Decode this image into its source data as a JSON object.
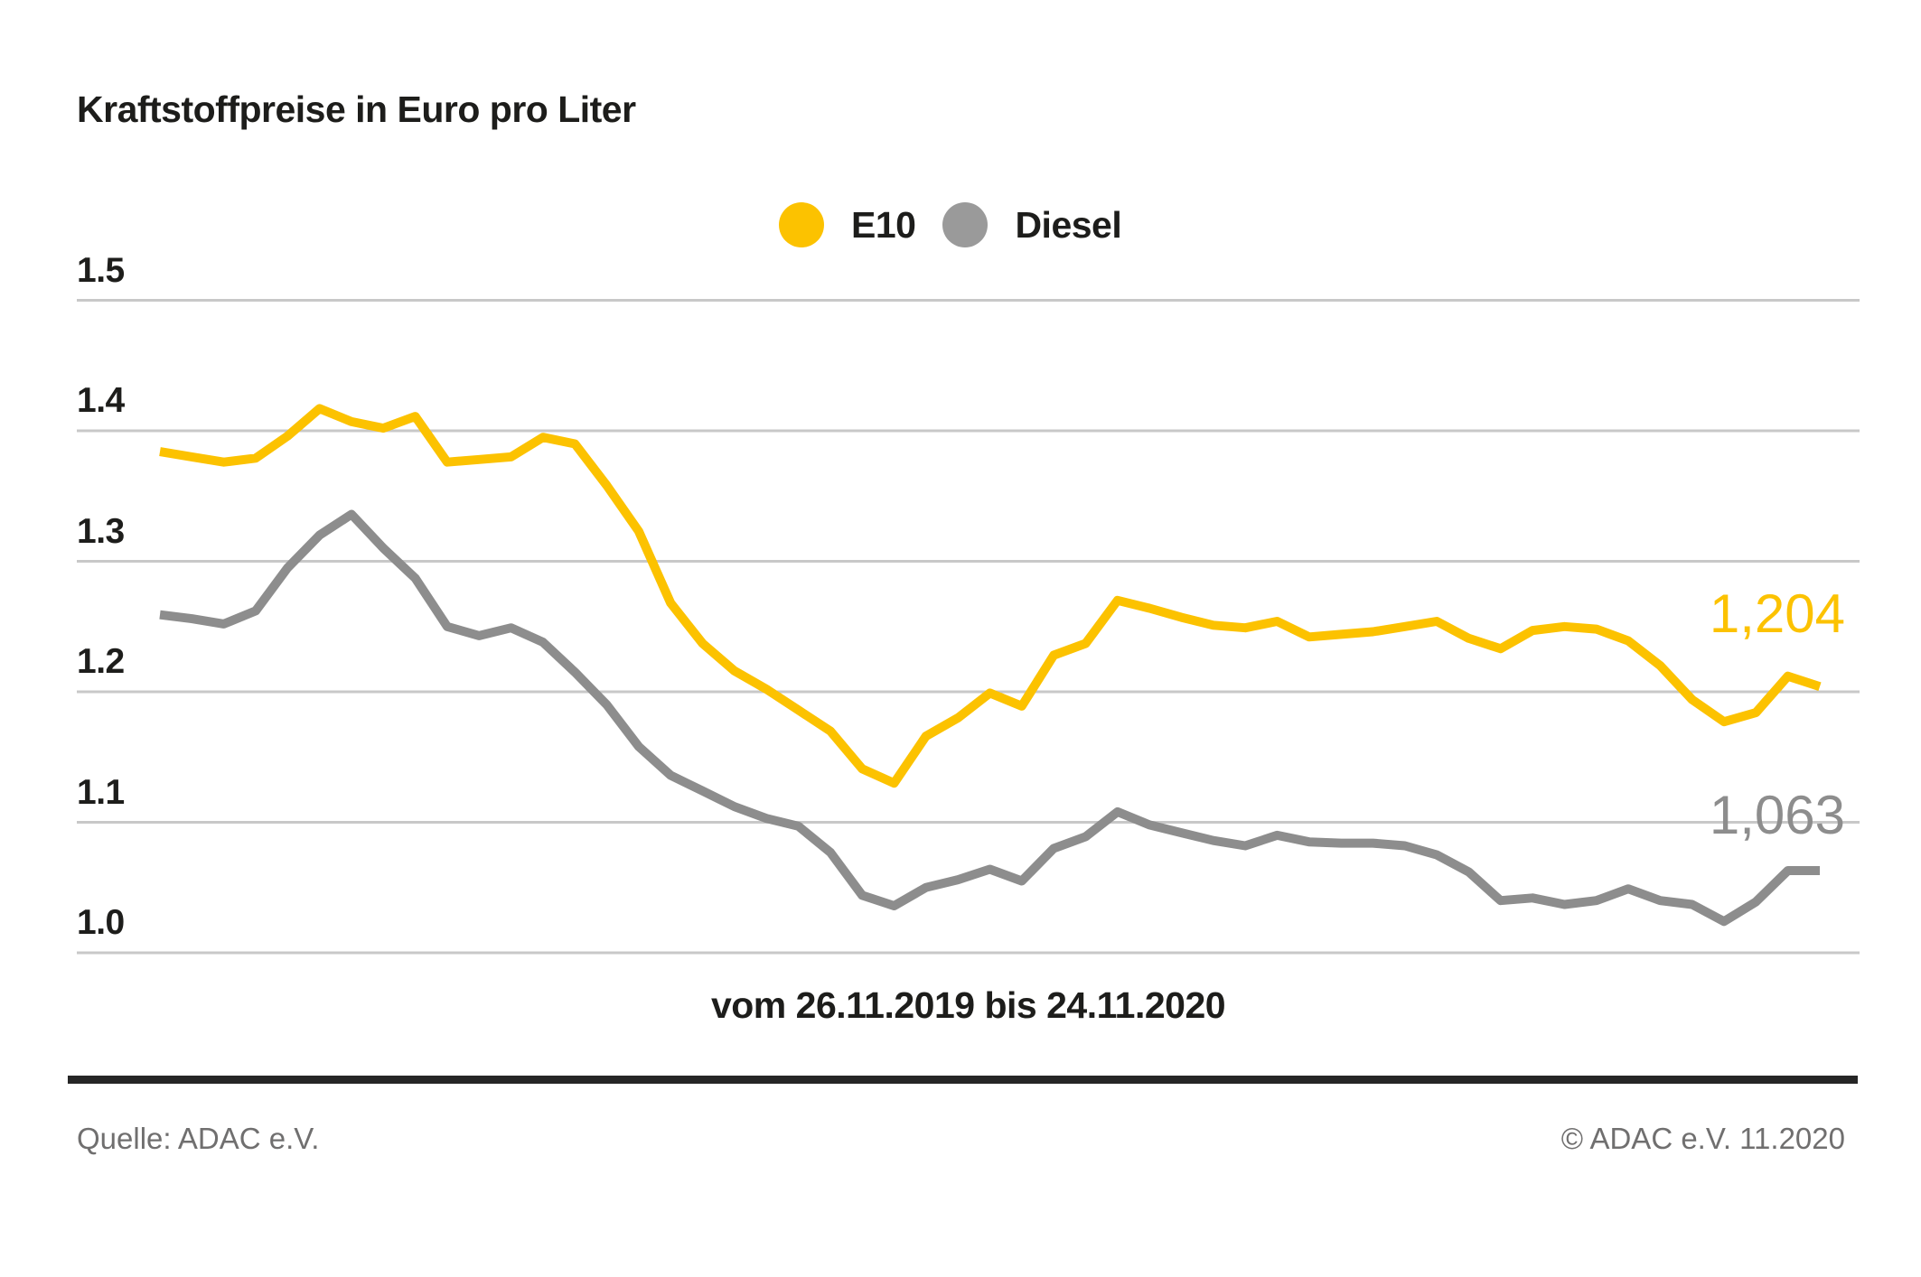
{
  "header": {
    "title": "Kraftstoffpreise in Euro pro Liter"
  },
  "y_axis": {
    "ticks": [
      "1.5",
      "1.4",
      "1.3",
      "1.2",
      "1.1",
      "1.0"
    ]
  },
  "footer": {
    "source": "Quelle: ADAC e.V.",
    "copyright": "© ADAC e.V. 11.2020"
  },
  "colors": {
    "e10_yellow": "#FCC200",
    "diesel_gray": "#8D8D8D",
    "legend_diesel_dot": "#9A9A9A",
    "gridline": "#C8C8C8",
    "text_dark": "#1D1D1B",
    "footer_gray": "#706F6F",
    "separator": "#262626"
  },
  "chart_data": {
    "type": "line",
    "title": "Kraftstoffpreise in Euro pro Liter",
    "x_caption": "vom 26.11.2019 bis 24.11.2020",
    "x_start": "26.11.2019",
    "x_end": "24.11.2020",
    "interval": "weekly",
    "ylim": [
      1.0,
      1.5
    ],
    "y_ticks": [
      1.5,
      1.4,
      1.3,
      1.2,
      1.1,
      1.0
    ],
    "grid": "horizontal",
    "legend_position": "top-center",
    "series": [
      {
        "name": "E10",
        "color": "#FCC200",
        "end_label": "1,204",
        "end_value": 1.204,
        "values": [
          1.384,
          1.38,
          1.376,
          1.379,
          1.396,
          1.417,
          1.407,
          1.402,
          1.411,
          1.376,
          1.378,
          1.38,
          1.395,
          1.39,
          1.358,
          1.323,
          1.268,
          1.237,
          1.216,
          1.202,
          1.186,
          1.17,
          1.141,
          1.13,
          1.166,
          1.18,
          1.199,
          1.189,
          1.228,
          1.237,
          1.27,
          1.264,
          1.257,
          1.251,
          1.249,
          1.254,
          1.242,
          1.244,
          1.246,
          1.25,
          1.254,
          1.241,
          1.233,
          1.247,
          1.25,
          1.248,
          1.239,
          1.22,
          1.194,
          1.177,
          1.184,
          1.212,
          1.204
        ]
      },
      {
        "name": "Diesel",
        "color": "#8D8D8D",
        "end_label": "1,063",
        "end_value": 1.063,
        "values": [
          1.259,
          1.256,
          1.252,
          1.262,
          1.295,
          1.32,
          1.336,
          1.31,
          1.287,
          1.25,
          1.243,
          1.249,
          1.238,
          1.215,
          1.19,
          1.158,
          1.136,
          1.124,
          1.112,
          1.103,
          1.097,
          1.077,
          1.044,
          1.036,
          1.05,
          1.056,
          1.064,
          1.055,
          1.08,
          1.089,
          1.108,
          1.098,
          1.092,
          1.086,
          1.082,
          1.09,
          1.085,
          1.084,
          1.084,
          1.082,
          1.075,
          1.062,
          1.04,
          1.042,
          1.037,
          1.04,
          1.049,
          1.04,
          1.037,
          1.024,
          1.039,
          1.063,
          1.063
        ]
      }
    ]
  }
}
